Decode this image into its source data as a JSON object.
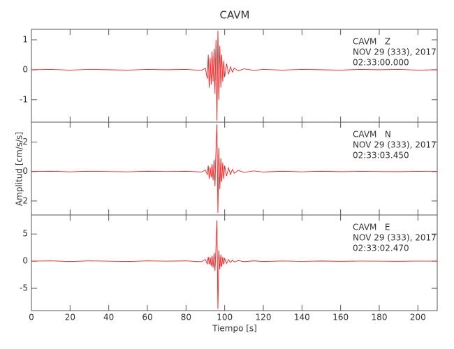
{
  "chart_data": {
    "type": "line",
    "title": "CAVM",
    "x_label": "Tiempo [s]",
    "y_label": "Amplitud [cm/s/s]",
    "xlim": [
      0,
      210
    ],
    "xticks": [
      0,
      20,
      40,
      60,
      80,
      100,
      120,
      140,
      160,
      180,
      200
    ],
    "x": [
      0,
      10,
      20,
      30,
      40,
      50,
      60,
      70,
      80,
      88,
      90,
      91,
      91.5,
      92,
      92.5,
      93,
      93.5,
      94,
      94.5,
      95,
      95.5,
      96,
      96.5,
      97,
      97.5,
      98,
      98.5,
      99,
      99.5,
      100,
      101,
      102,
      103,
      104,
      105,
      107,
      110,
      115,
      120,
      130,
      140,
      150,
      160,
      170,
      180,
      190,
      200,
      210
    ],
    "series": [
      {
        "name": "CAVM   Z",
        "date": "NOV 29 (333), 2017",
        "time": "02:33:00.000",
        "color": "#ff0000",
        "ylim": [
          -1.75,
          1.35
        ],
        "yticks": [
          -1,
          0,
          1
        ],
        "values": [
          0,
          0.01,
          -0.01,
          0.01,
          0,
          -0.01,
          0.01,
          0,
          0.01,
          -0.02,
          0.05,
          -0.3,
          0.5,
          -0.6,
          0.4,
          -0.5,
          0.6,
          -0.4,
          0.7,
          -0.8,
          1.0,
          -1.7,
          1.3,
          -1.0,
          0.8,
          -0.6,
          0.5,
          -0.4,
          0.3,
          -0.25,
          0.2,
          -0.15,
          0.1,
          -0.08,
          0.06,
          -0.04,
          0.03,
          -0.02,
          0.01,
          -0.01,
          0.01,
          0,
          -0.01,
          0.01,
          0,
          0.01,
          -0.01,
          0
        ]
      },
      {
        "name": "CAVM   N",
        "date": "NOV 29 (333), 2017",
        "time": "02:33:03.450",
        "color": "#ff0000",
        "ylim": [
          -2.95,
          3.35
        ],
        "yticks": [
          -2,
          0,
          2
        ],
        "values": [
          0,
          0.02,
          -0.02,
          0.02,
          0,
          -0.02,
          0.02,
          0,
          0.02,
          -0.03,
          0.1,
          -0.2,
          0.4,
          -0.5,
          0.3,
          -0.4,
          0.5,
          -0.6,
          0.8,
          -1.0,
          1.5,
          3.2,
          -2.8,
          1.6,
          -1.2,
          0.9,
          -0.7,
          0.6,
          -0.5,
          0.4,
          -0.3,
          0.25,
          -0.2,
          0.15,
          -0.12,
          0.08,
          -0.06,
          0.04,
          -0.03,
          0.02,
          -0.02,
          0.02,
          -0.01,
          0.01,
          0,
          -0.01,
          0.01,
          0
        ]
      },
      {
        "name": "CAVM   E",
        "date": "NOV 29 (333), 2017",
        "time": "02:33:02.470",
        "color": "#ff0000",
        "ylim": [
          -9.1,
          8.5
        ],
        "yticks": [
          -5,
          0,
          5
        ],
        "values": [
          0,
          0.05,
          -0.05,
          0.05,
          0,
          -0.05,
          0.05,
          0,
          0.05,
          -0.1,
          0.3,
          -0.5,
          0.8,
          -0.6,
          0.7,
          -0.9,
          1.0,
          -1.2,
          1.5,
          -1.8,
          2.5,
          7.5,
          -8.8,
          2.0,
          -1.5,
          1.2,
          -1.0,
          0.8,
          -0.6,
          0.5,
          -0.4,
          0.3,
          -0.25,
          0.2,
          -0.15,
          0.1,
          -0.08,
          0.06,
          -0.05,
          0.04,
          -0.03,
          0.03,
          -0.02,
          0.02,
          0,
          -0.02,
          0.02,
          0
        ]
      }
    ]
  }
}
